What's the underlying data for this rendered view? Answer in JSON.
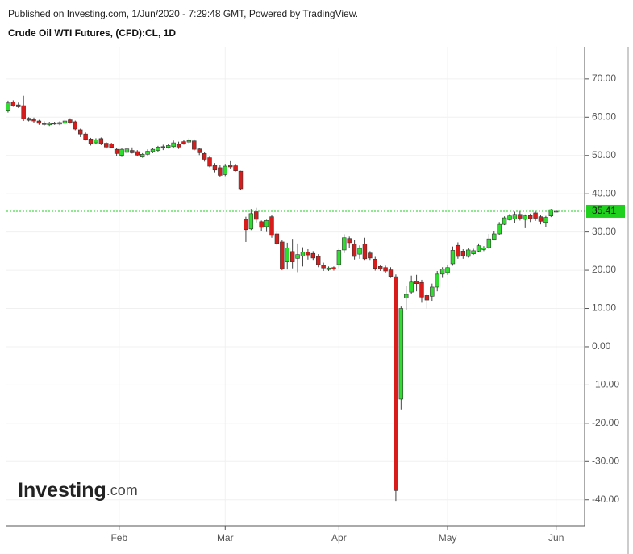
{
  "chart_data": {
    "type": "candlestick",
    "published": "Published on Investing.com, 1/Jun/2020 - 7:29:48 GMT, Powered by TradingView.",
    "title": "Crude Oil WTI Futures, (CFD):CL, 1D",
    "watermark": "Investing",
    "watermark_suffix": ".com",
    "x": [
      0,
      1,
      2,
      3,
      4,
      5,
      6,
      7,
      8,
      9,
      10,
      11,
      12,
      13,
      14,
      15,
      16,
      17,
      18,
      19,
      20,
      21,
      22,
      23,
      24,
      25,
      26,
      27,
      28,
      29,
      30,
      31,
      32,
      33,
      34,
      35,
      36,
      37,
      38,
      39,
      40,
      41,
      42,
      43,
      44,
      45,
      46,
      47,
      48,
      49,
      50,
      51,
      52,
      53,
      54,
      55,
      56,
      57,
      58,
      59,
      60,
      61,
      62,
      63,
      64,
      65,
      66,
      67,
      68,
      69,
      70,
      71,
      72,
      73,
      74,
      75,
      76,
      77,
      78,
      79,
      80,
      81,
      82,
      83,
      84,
      85,
      86,
      87,
      88,
      89,
      90,
      91,
      92,
      93,
      94,
      95,
      96,
      97,
      98,
      99,
      100,
      101,
      102,
      103,
      104,
      105,
      106
    ],
    "series": [
      {
        "open": [
          61.6,
          63.9,
          63.2,
          63.0,
          59.7,
          59.4,
          59.0,
          58.5,
          58.0,
          58.5,
          58.2,
          58.4,
          59.3,
          58.8,
          56.7,
          55.6,
          54.3,
          53.3,
          54.4,
          53.2,
          53.0,
          51.6,
          50.0,
          50.8,
          51.3,
          51.0,
          49.6,
          50.3,
          51.0,
          51.3,
          52.3,
          52.1,
          52.3,
          52.9,
          53.6,
          53.5,
          53.8,
          51.7,
          50.5,
          49.4,
          47.4,
          46.8,
          45.0,
          47.5,
          47.3,
          45.9,
          33.3,
          30.8,
          35.3,
          32.7,
          31.4,
          34.0,
          29.5,
          27.4,
          22.2,
          24.9,
          23.1,
          23.7,
          24.7,
          24.4,
          23.6,
          21.3,
          20.2,
          20.7,
          21.5,
          25.3,
          28.3,
          26.8,
          24.2,
          26.9,
          24.5,
          22.9,
          21.0,
          20.7,
          20.1,
          18.3,
          -13.7,
          12.7,
          14.3,
          17.2,
          16.8,
          13.4,
          13.2,
          15.6,
          19.0,
          19.4,
          21.7,
          26.5,
          25.0,
          23.6,
          24.3,
          25.0,
          25.4,
          25.9,
          28.1,
          29.5,
          32.0,
          33.2,
          33.4,
          34.6,
          33.3,
          34.3,
          35.0,
          34.0,
          32.5,
          34.2,
          35.3
        ],
        "high": [
          64.3,
          64.4,
          63.8,
          65.6,
          60.0,
          59.9,
          59.3,
          58.9,
          58.8,
          58.8,
          58.9,
          59.5,
          59.7,
          59.1,
          57.0,
          56.0,
          54.6,
          54.5,
          54.7,
          53.5,
          53.3,
          52.0,
          52.0,
          52.0,
          52.1,
          51.4,
          50.6,
          51.6,
          51.9,
          52.5,
          52.8,
          53.0,
          53.9,
          53.6,
          54.0,
          54.5,
          54.2,
          52.0,
          51.0,
          49.8,
          48.0,
          47.5,
          47.8,
          48.5,
          47.8,
          46.0,
          34.0,
          36.0,
          36.3,
          33.0,
          33.2,
          34.5,
          30.0,
          28.0,
          27.2,
          28.2,
          27.0,
          26.0,
          25.5,
          25.0,
          24.2,
          22.0,
          21.0,
          21.0,
          25.6,
          29.4,
          28.8,
          28.0,
          26.5,
          28.5,
          25.0,
          23.5,
          21.4,
          21.2,
          20.8,
          18.9,
          10.5,
          15.8,
          18.6,
          18.8,
          17.5,
          14.0,
          16.5,
          19.8,
          20.8,
          21.5,
          26.2,
          27.3,
          25.5,
          25.8,
          25.6,
          27.0,
          26.3,
          29.5,
          30.2,
          32.6,
          34.1,
          34.7,
          35.3,
          35.4,
          34.6,
          34.8,
          35.3,
          34.4,
          34.2,
          36.0,
          35.7
        ],
        "low": [
          61.2,
          62.7,
          62.4,
          59.0,
          58.9,
          58.4,
          58.0,
          57.8,
          57.7,
          58.0,
          57.9,
          58.2,
          58.3,
          56.6,
          54.8,
          53.9,
          52.6,
          52.9,
          52.7,
          51.8,
          51.9,
          49.9,
          49.6,
          50.4,
          50.5,
          49.8,
          49.4,
          50.0,
          50.6,
          51.0,
          51.4,
          51.8,
          51.9,
          51.7,
          52.8,
          53.0,
          51.3,
          50.1,
          48.4,
          46.9,
          45.6,
          44.3,
          44.6,
          46.5,
          45.8,
          41.0,
          27.4,
          30.5,
          32.5,
          30.2,
          30.0,
          28.5,
          26.5,
          20.0,
          20.2,
          20.5,
          19.5,
          21.0,
          22.8,
          22.5,
          20.8,
          19.8,
          19.8,
          19.9,
          20.5,
          24.5,
          25.8,
          22.8,
          23.0,
          22.5,
          22.5,
          19.9,
          19.8,
          19.3,
          18.0,
          -40.3,
          -16.4,
          9.5,
          13.8,
          14.5,
          11.5,
          10.0,
          12.0,
          14.5,
          18.0,
          18.8,
          21.2,
          23.0,
          23.0,
          23.3,
          24.0,
          24.8,
          25.0,
          25.5,
          27.8,
          29.2,
          31.8,
          33.0,
          32.4,
          33.0,
          31.0,
          32.6,
          32.9,
          32.0,
          31.3,
          33.9,
          35.1
        ],
        "close": [
          63.7,
          63.0,
          62.7,
          59.6,
          59.2,
          59.0,
          58.4,
          58.1,
          58.4,
          58.2,
          58.6,
          59.0,
          58.6,
          56.9,
          55.6,
          54.2,
          53.1,
          54.1,
          53.1,
          52.2,
          52.1,
          50.5,
          51.6,
          51.7,
          50.7,
          50.1,
          50.3,
          51.1,
          51.6,
          52.2,
          51.9,
          52.6,
          53.3,
          52.2,
          53.1,
          53.9,
          51.6,
          50.7,
          49.0,
          47.2,
          46.2,
          44.8,
          47.2,
          47.0,
          46.0,
          41.3,
          30.6,
          34.8,
          33.3,
          31.2,
          33.0,
          29.1,
          27.0,
          20.4,
          25.8,
          22.2,
          24.1,
          24.8,
          24.0,
          23.2,
          21.5,
          20.6,
          20.6,
          20.3,
          25.2,
          28.5,
          27.2,
          23.6,
          25.7,
          23.0,
          23.2,
          20.5,
          20.4,
          19.8,
          18.4,
          -37.6,
          10.0,
          13.7,
          16.9,
          16.5,
          13.0,
          12.2,
          15.6,
          19.0,
          20.3,
          20.7,
          25.2,
          23.6,
          23.8,
          25.3,
          25.1,
          26.4,
          25.8,
          28.2,
          29.5,
          32.0,
          33.7,
          34.2,
          34.6,
          33.6,
          34.2,
          33.5,
          33.6,
          32.8,
          33.8,
          35.8,
          35.41
        ]
      }
    ],
    "up_color": "#2fdc2f",
    "down_color": "#d81c1c",
    "last_price": 35.41,
    "last_price_label": "35.41",
    "last_price_color": "#1fd01f",
    "xlim": [
      -0.3,
      111.5
    ],
    "xticks": [
      {
        "value": 21.5,
        "label": "Feb"
      },
      {
        "value": 42,
        "label": "Mar"
      },
      {
        "value": 64,
        "label": "Apr"
      },
      {
        "value": 85,
        "label": "May"
      },
      {
        "value": 106,
        "label": "Jun"
      }
    ],
    "ylim": [
      -46.8,
      78.4
    ],
    "yticks": [
      {
        "value": -40,
        "label": "-40.00"
      },
      {
        "value": -30,
        "label": "-30.00"
      },
      {
        "value": -20,
        "label": "-20.00"
      },
      {
        "value": -10,
        "label": "-10.00"
      },
      {
        "value": 0,
        "label": "0.00"
      },
      {
        "value": 10,
        "label": "10.00"
      },
      {
        "value": 20,
        "label": "20.00"
      },
      {
        "value": 30,
        "label": "30.00"
      },
      {
        "value": 40,
        "label": "40.00"
      },
      {
        "value": 50,
        "label": "50.00"
      },
      {
        "value": 60,
        "label": "60.00"
      },
      {
        "value": 70,
        "label": "70.00"
      }
    ],
    "grid": true,
    "y_axis_side": "right"
  }
}
